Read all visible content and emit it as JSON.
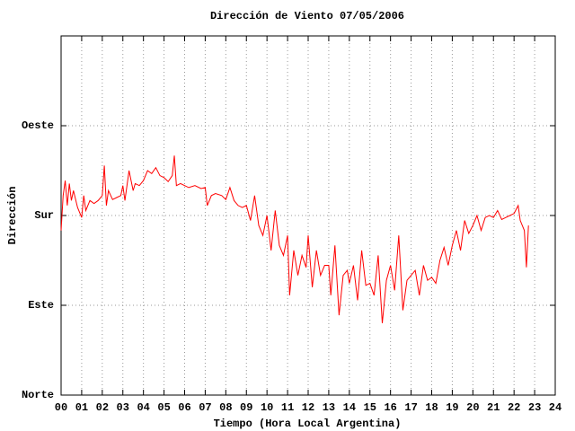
{
  "chart_data": {
    "type": "line",
    "title": "Dirección de Viento 07/05/2006",
    "x_label": "Tiempo (Hora Local Argentina)",
    "y_label": "Dirección",
    "xlim": [
      0,
      24
    ],
    "xticks": [
      {
        "value": 0,
        "label": "00"
      },
      {
        "value": 1,
        "label": "01"
      },
      {
        "value": 2,
        "label": "02"
      },
      {
        "value": 3,
        "label": "03"
      },
      {
        "value": 4,
        "label": "04"
      },
      {
        "value": 5,
        "label": "05"
      },
      {
        "value": 6,
        "label": "06"
      },
      {
        "value": 7,
        "label": "07"
      },
      {
        "value": 8,
        "label": "08"
      },
      {
        "value": 9,
        "label": "09"
      },
      10,
      11,
      12,
      13,
      14,
      15,
      16,
      17,
      18,
      19,
      20,
      21,
      22,
      23,
      24
    ],
    "ylim": [
      0,
      360
    ],
    "yticks": [
      {
        "value": 0,
        "label": "Norte"
      },
      {
        "value": 90,
        "label": "Este"
      },
      {
        "value": 180,
        "label": "Sur"
      },
      {
        "value": 270,
        "label": "Oeste"
      }
    ],
    "grid": true,
    "series": [
      {
        "color": "#ff0000",
        "x": [
          0.0,
          0.1,
          0.2,
          0.3,
          0.4,
          0.5,
          0.6,
          0.8,
          1.0,
          1.1,
          1.2,
          1.4,
          1.6,
          1.8,
          2.0,
          2.1,
          2.2,
          2.3,
          2.5,
          2.7,
          2.9,
          3.0,
          3.1,
          3.3,
          3.5,
          3.6,
          3.8,
          4.0,
          4.2,
          4.4,
          4.6,
          4.8,
          5.0,
          5.2,
          5.4,
          5.5,
          5.6,
          5.8,
          6.0,
          6.2,
          6.5,
          6.8,
          7.0,
          7.1,
          7.3,
          7.5,
          7.8,
          8.0,
          8.2,
          8.4,
          8.6,
          8.8,
          9.0,
          9.2,
          9.4,
          9.6,
          9.8,
          10.0,
          10.2,
          10.4,
          10.6,
          10.8,
          11.0,
          11.1,
          11.3,
          11.5,
          11.7,
          11.9,
          12.0,
          12.2,
          12.4,
          12.6,
          12.8,
          13.0,
          13.1,
          13.3,
          13.5,
          13.7,
          13.9,
          14.0,
          14.2,
          14.4,
          14.6,
          14.8,
          15.0,
          15.2,
          15.4,
          15.6,
          15.8,
          16.0,
          16.2,
          16.4,
          16.6,
          16.8,
          17.0,
          17.2,
          17.4,
          17.6,
          17.8,
          18.0,
          18.2,
          18.4,
          18.6,
          18.8,
          19.0,
          19.2,
          19.4,
          19.6,
          19.8,
          20.0,
          20.2,
          20.4,
          20.6,
          20.8,
          21.0,
          21.2,
          21.4,
          21.6,
          21.8,
          22.0,
          22.2,
          22.3,
          22.5,
          22.6,
          22.7
        ],
        "values": [
          165,
          200,
          215,
          190,
          212,
          195,
          205,
          188,
          178,
          200,
          185,
          195,
          192,
          195,
          200,
          230,
          190,
          205,
          196,
          198,
          200,
          210,
          195,
          225,
          205,
          212,
          210,
          215,
          225,
          222,
          228,
          220,
          218,
          214,
          220,
          240,
          210,
          212,
          210,
          208,
          210,
          207,
          208,
          190,
          200,
          202,
          200,
          196,
          208,
          195,
          190,
          188,
          190,
          175,
          200,
          170,
          160,
          180,
          145,
          185,
          150,
          140,
          160,
          100,
          145,
          120,
          140,
          128,
          160,
          108,
          145,
          120,
          130,
          130,
          100,
          150,
          80,
          120,
          125,
          112,
          130,
          95,
          145,
          110,
          112,
          100,
          140,
          72,
          115,
          130,
          105,
          160,
          85,
          115,
          120,
          125,
          100,
          130,
          115,
          118,
          112,
          135,
          148,
          130,
          150,
          165,
          145,
          175,
          162,
          170,
          180,
          165,
          178,
          180,
          178,
          185,
          176,
          178,
          180,
          182,
          190,
          175,
          165,
          128,
          170
        ]
      }
    ]
  }
}
